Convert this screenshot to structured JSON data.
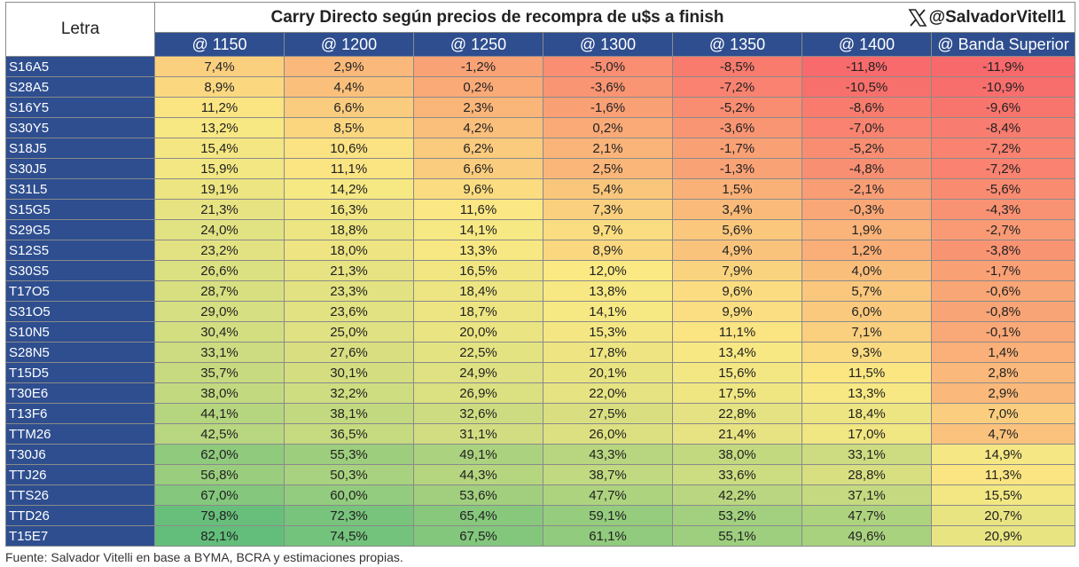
{
  "title": "Carry Directo según precios de recompra de u$s a finish",
  "handle": "@SalvadorVitell1",
  "row_header": "Letra",
  "columns": [
    "@ 1150",
    "@ 1200",
    "@ 1250",
    "@ 1300",
    "@ 1350",
    "@ 1400",
    "@ Banda Superior"
  ],
  "rows": [
    {
      "letra": "S16A5",
      "values": [
        "7,4%",
        "2,9%",
        "-1,2%",
        "-5,0%",
        "-8,5%",
        "-11,8%",
        "-11,9%"
      ]
    },
    {
      "letra": "S28A5",
      "values": [
        "8,9%",
        "4,4%",
        "0,2%",
        "-3,6%",
        "-7,2%",
        "-10,5%",
        "-10,9%"
      ]
    },
    {
      "letra": "S16Y5",
      "values": [
        "11,2%",
        "6,6%",
        "2,3%",
        "-1,6%",
        "-5,2%",
        "-8,6%",
        "-9,6%"
      ]
    },
    {
      "letra": "S30Y5",
      "values": [
        "13,2%",
        "8,5%",
        "4,2%",
        "0,2%",
        "-3,6%",
        "-7,0%",
        "-8,4%"
      ]
    },
    {
      "letra": "S18J5",
      "values": [
        "15,4%",
        "10,6%",
        "6,2%",
        "2,1%",
        "-1,7%",
        "-5,2%",
        "-7,2%"
      ]
    },
    {
      "letra": "S30J5",
      "values": [
        "15,9%",
        "11,1%",
        "6,6%",
        "2,5%",
        "-1,3%",
        "-4,8%",
        "-7,2%"
      ]
    },
    {
      "letra": "S31L5",
      "values": [
        "19,1%",
        "14,2%",
        "9,6%",
        "5,4%",
        "1,5%",
        "-2,1%",
        "-5,6%"
      ]
    },
    {
      "letra": "S15G5",
      "values": [
        "21,3%",
        "16,3%",
        "11,6%",
        "7,3%",
        "3,4%",
        "-0,3%",
        "-4,3%"
      ]
    },
    {
      "letra": "S29G5",
      "values": [
        "24,0%",
        "18,8%",
        "14,1%",
        "9,7%",
        "5,6%",
        "1,9%",
        "-2,7%"
      ]
    },
    {
      "letra": "S12S5",
      "values": [
        "23,2%",
        "18,0%",
        "13,3%",
        "8,9%",
        "4,9%",
        "1,2%",
        "-3,8%"
      ]
    },
    {
      "letra": "S30S5",
      "values": [
        "26,6%",
        "21,3%",
        "16,5%",
        "12,0%",
        "7,9%",
        "4,0%",
        "-1,7%"
      ]
    },
    {
      "letra": "T17O5",
      "values": [
        "28,7%",
        "23,3%",
        "18,4%",
        "13,8%",
        "9,6%",
        "5,7%",
        "-0,6%"
      ]
    },
    {
      "letra": "S31O5",
      "values": [
        "29,0%",
        "23,6%",
        "18,7%",
        "14,1%",
        "9,9%",
        "6,0%",
        "-0,8%"
      ]
    },
    {
      "letra": "S10N5",
      "values": [
        "30,4%",
        "25,0%",
        "20,0%",
        "15,3%",
        "11,1%",
        "7,1%",
        "-0,1%"
      ]
    },
    {
      "letra": "S28N5",
      "values": [
        "33,1%",
        "27,6%",
        "22,5%",
        "17,8%",
        "13,4%",
        "9,3%",
        "1,4%"
      ]
    },
    {
      "letra": "T15D5",
      "values": [
        "35,7%",
        "30,1%",
        "24,9%",
        "20,1%",
        "15,6%",
        "11,5%",
        "2,8%"
      ]
    },
    {
      "letra": "T30E6",
      "values": [
        "38,0%",
        "32,2%",
        "26,9%",
        "22,0%",
        "17,5%",
        "13,3%",
        "2,9%"
      ]
    },
    {
      "letra": "T13F6",
      "values": [
        "44,1%",
        "38,1%",
        "32,6%",
        "27,5%",
        "22,8%",
        "18,4%",
        "7,0%"
      ]
    },
    {
      "letra": "TTM26",
      "values": [
        "42,5%",
        "36,5%",
        "31,1%",
        "26,0%",
        "21,4%",
        "17,0%",
        "4,7%"
      ]
    },
    {
      "letra": "T30J6",
      "values": [
        "62,0%",
        "55,3%",
        "49,1%",
        "43,3%",
        "38,0%",
        "33,1%",
        "14,9%"
      ]
    },
    {
      "letra": "TTJ26",
      "values": [
        "56,8%",
        "50,3%",
        "44,3%",
        "38,7%",
        "33,6%",
        "28,8%",
        "11,3%"
      ]
    },
    {
      "letra": "TTS26",
      "values": [
        "67,0%",
        "60,0%",
        "53,6%",
        "47,7%",
        "42,2%",
        "37,1%",
        "15,5%"
      ]
    },
    {
      "letra": "TTD26",
      "values": [
        "79,8%",
        "72,3%",
        "65,4%",
        "59,1%",
        "53,2%",
        "47,7%",
        "20,7%"
      ]
    },
    {
      "letra": "T15E7",
      "values": [
        "82,1%",
        "74,5%",
        "67,5%",
        "61,1%",
        "55,1%",
        "49,6%",
        "20,9%"
      ]
    }
  ],
  "colors": {
    "header_blue": "#2e4e8f",
    "scale_low": "#f8696b",
    "scale_mid": "#fbe983",
    "scale_high": "#63be7b"
  },
  "source": "Fuente: Salvador Vitelli en base a BYMA, BCRA y estimaciones propias."
}
